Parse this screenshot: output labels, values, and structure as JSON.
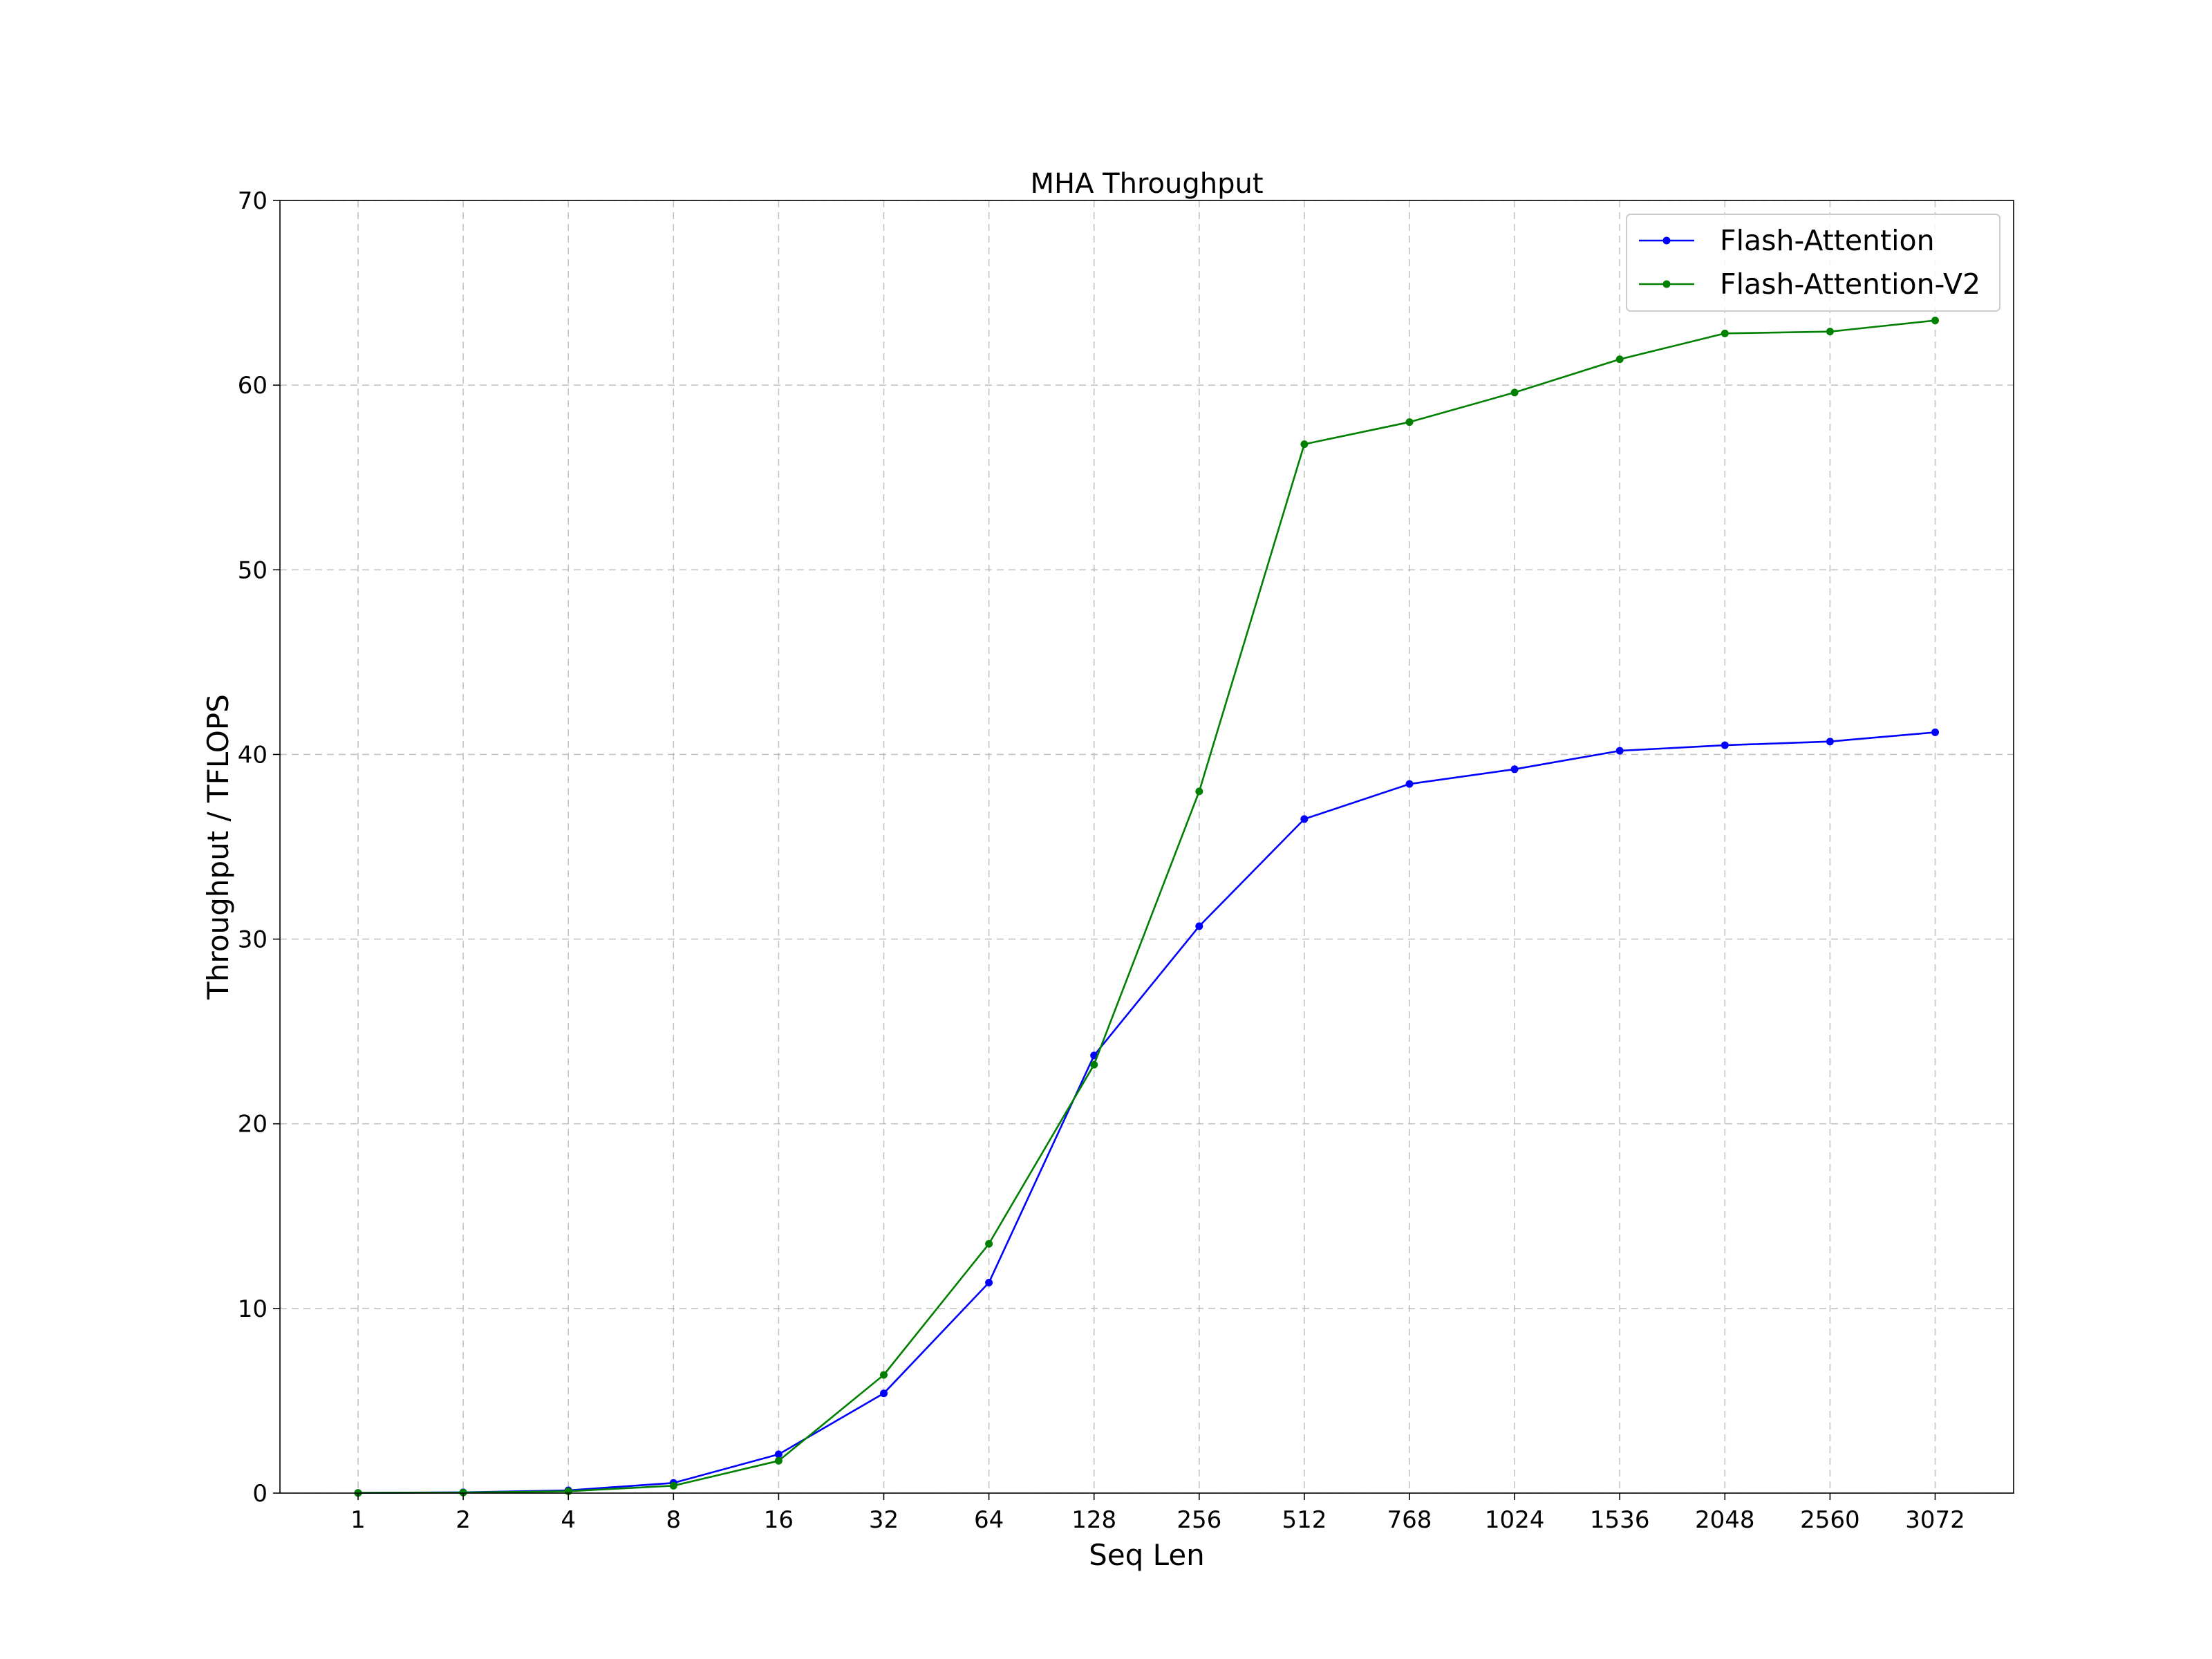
{
  "chart_data": {
    "type": "line",
    "title": "MHA Throughput",
    "xlabel": "Seq Len",
    "ylabel": "Throughput / TFLOPS",
    "categories": [
      "1",
      "2",
      "4",
      "8",
      "16",
      "32",
      "64",
      "128",
      "256",
      "512",
      "768",
      "1024",
      "1536",
      "2048",
      "2560",
      "3072"
    ],
    "ylim": [
      0,
      70
    ],
    "yticks": [
      0,
      10,
      20,
      30,
      40,
      50,
      60,
      70
    ],
    "grid": true,
    "legend_position": "upper right",
    "series": [
      {
        "name": "Flash-Attention",
        "color": "#0000ff",
        "marker": "circle",
        "values": [
          0.01,
          0.04,
          0.15,
          0.55,
          2.1,
          5.4,
          11.4,
          23.7,
          30.7,
          36.5,
          38.4,
          39.2,
          40.2,
          40.5,
          40.7,
          41.2
        ]
      },
      {
        "name": "Flash-Attention-V2",
        "color": "#008000",
        "marker": "circle",
        "values": [
          0.01,
          0.03,
          0.1,
          0.4,
          1.75,
          6.4,
          13.5,
          23.2,
          38.0,
          56.8,
          58.0,
          59.6,
          61.4,
          62.8,
          62.9,
          63.5
        ]
      }
    ]
  }
}
